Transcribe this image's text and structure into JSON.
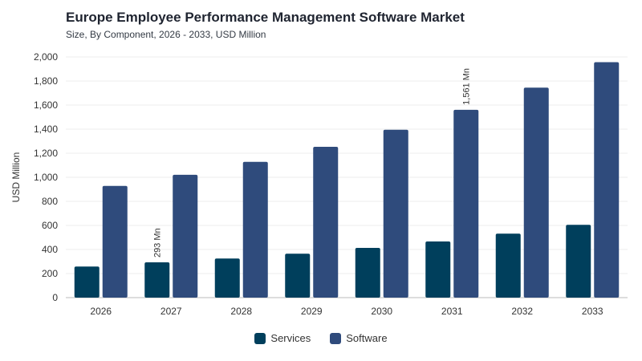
{
  "chart_data": {
    "type": "bar",
    "title": "Europe Employee Performance Management Software Market",
    "subtitle": "Size, By Component, 2026 - 2033, USD Million",
    "xlabel": "",
    "ylabel": "USD Million",
    "ylim": [
      0,
      2000
    ],
    "yticks": [
      "0",
      "200",
      "400",
      "600",
      "800",
      "1,000",
      "1,200",
      "1,400",
      "1,600",
      "1,800",
      "2,000"
    ],
    "categories": [
      "2026",
      "2027",
      "2028",
      "2029",
      "2030",
      "2031",
      "2032",
      "2033"
    ],
    "series": [
      {
        "name": "Services",
        "color": "#003f5c",
        "values": [
          258,
          293,
          325,
          365,
          413,
          467,
          532,
          605
        ]
      },
      {
        "name": "Software",
        "color": "#2f4b7c",
        "values": [
          928,
          1021,
          1128,
          1253,
          1395,
          1561,
          1745,
          1957
        ]
      }
    ],
    "annotations": [
      {
        "series": 0,
        "index": 1,
        "text": "293 Mn"
      },
      {
        "series": 1,
        "index": 5,
        "text": "1,561 Mn"
      }
    ],
    "grid": true,
    "legend_position": "bottom-center"
  }
}
